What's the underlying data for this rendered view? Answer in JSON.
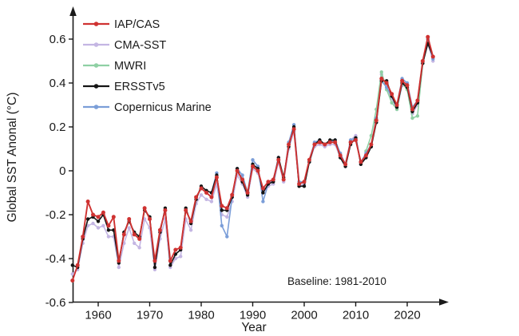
{
  "chart_data": {
    "type": "line",
    "title": "",
    "xlabel": "Year",
    "ylabel": "Global SST Anonal (°C)",
    "annotation": "Baseline: 1981-2010",
    "annotation_color": "#8a8a8a",
    "xlim": [
      1954.5,
      2027.5
    ],
    "ylim": [
      -0.6,
      0.72
    ],
    "x_ticks": [
      1960,
      1970,
      1980,
      1990,
      2000,
      2010,
      2020
    ],
    "y_ticks": [
      -0.6,
      -0.4,
      -0.2,
      0,
      0.2,
      0.4,
      0.6
    ],
    "grid": false,
    "legend_position": "top-left-inside",
    "series": [
      {
        "name": "IAP/CAS",
        "color": "#cf3231",
        "start_year": 1955,
        "values": [
          -0.5,
          -0.43,
          -0.3,
          -0.14,
          -0.2,
          -0.21,
          -0.19,
          -0.25,
          -0.21,
          -0.41,
          -0.29,
          -0.22,
          -0.29,
          -0.31,
          -0.17,
          -0.22,
          -0.41,
          -0.27,
          -0.18,
          -0.41,
          -0.36,
          -0.35,
          -0.18,
          -0.23,
          -0.12,
          -0.08,
          -0.1,
          -0.12,
          -0.03,
          -0.16,
          -0.17,
          -0.11,
          0.0,
          -0.04,
          -0.1,
          0.02,
          0.0,
          -0.08,
          -0.05,
          -0.04,
          0.05,
          -0.04,
          0.12,
          0.19,
          -0.06,
          -0.05,
          0.05,
          0.12,
          0.13,
          0.12,
          0.13,
          0.13,
          0.07,
          0.03,
          0.13,
          0.14,
          0.04,
          0.07,
          0.12,
          0.23,
          0.42,
          0.4,
          0.35,
          0.3,
          0.41,
          0.39,
          0.28,
          0.32,
          0.5,
          0.61,
          0.52
        ]
      },
      {
        "name": "CMA-SST",
        "color": "#c4b6e3",
        "start_year": 1955,
        "values": [
          -0.47,
          -0.45,
          -0.33,
          -0.25,
          -0.24,
          -0.26,
          -0.25,
          -0.3,
          -0.3,
          -0.44,
          -0.33,
          -0.26,
          -0.33,
          -0.35,
          -0.22,
          -0.26,
          -0.45,
          -0.31,
          -0.22,
          -0.44,
          -0.4,
          -0.39,
          -0.22,
          -0.27,
          -0.15,
          -0.11,
          -0.13,
          -0.14,
          -0.06,
          -0.2,
          -0.21,
          -0.14,
          -0.02,
          -0.06,
          -0.12,
          0.01,
          -0.01,
          -0.1,
          -0.07,
          -0.06,
          0.04,
          -0.05,
          0.1,
          0.18,
          -0.07,
          -0.06,
          0.04,
          0.11,
          0.12,
          0.11,
          0.12,
          0.12,
          0.06,
          0.02,
          0.14,
          0.16,
          0.03,
          0.06,
          0.11,
          0.22,
          0.44,
          0.38,
          0.33,
          0.28,
          0.39,
          0.38,
          0.26,
          0.3,
          0.49,
          0.58,
          0.5
        ]
      },
      {
        "name": "MWRI",
        "color": "#8fd0a4",
        "start_year": 2012,
        "values": [
          0.09,
          0.16,
          0.28,
          0.45,
          0.37,
          0.31,
          0.28,
          0.4,
          0.37,
          0.24,
          0.25,
          0.49,
          0.6,
          0.52
        ]
      },
      {
        "name": "ERSSTv5",
        "color": "#141414",
        "start_year": 1955,
        "values": [
          -0.43,
          -0.44,
          -0.31,
          -0.22,
          -0.21,
          -0.23,
          -0.2,
          -0.27,
          -0.27,
          -0.42,
          -0.28,
          -0.23,
          -0.28,
          -0.3,
          -0.18,
          -0.21,
          -0.44,
          -0.28,
          -0.17,
          -0.43,
          -0.38,
          -0.36,
          -0.17,
          -0.24,
          -0.13,
          -0.07,
          -0.09,
          -0.1,
          -0.02,
          -0.18,
          -0.18,
          -0.12,
          0.01,
          -0.05,
          -0.11,
          0.03,
          0.01,
          -0.1,
          -0.06,
          -0.05,
          0.06,
          -0.03,
          0.11,
          0.2,
          -0.07,
          -0.07,
          0.04,
          0.12,
          0.14,
          0.12,
          0.14,
          0.14,
          0.06,
          0.02,
          0.12,
          0.15,
          0.03,
          0.06,
          0.11,
          0.22,
          0.41,
          0.41,
          0.34,
          0.29,
          0.4,
          0.38,
          0.27,
          0.31,
          0.49,
          0.58,
          0.52
        ]
      },
      {
        "name": "Copernicus Marine",
        "color": "#7b9ed8",
        "start_year": 1982,
        "values": [
          -0.1,
          -0.01,
          -0.25,
          -0.3,
          -0.12,
          0.01,
          -0.02,
          -0.1,
          0.05,
          0.02,
          -0.14,
          -0.06,
          -0.04,
          0.06,
          -0.04,
          0.13,
          0.21,
          -0.05,
          -0.05,
          0.05,
          0.13,
          0.14,
          0.12,
          0.13,
          0.14,
          0.08,
          0.03,
          0.14,
          0.15,
          0.04,
          0.08,
          0.12,
          0.24,
          0.41,
          0.38,
          0.34,
          0.3,
          0.42,
          0.4,
          0.29,
          0.32,
          0.5,
          0.6,
          0.51
        ]
      }
    ]
  }
}
